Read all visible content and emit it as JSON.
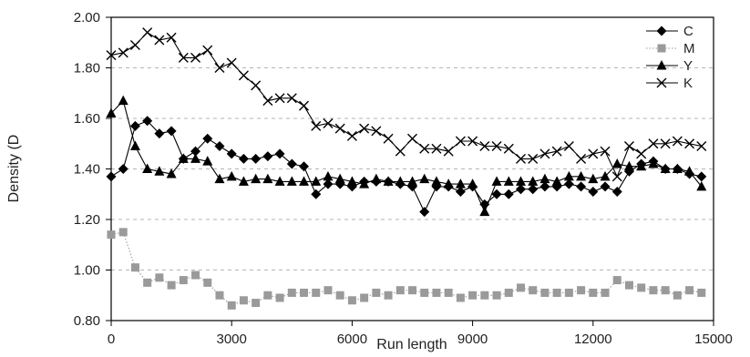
{
  "chart_data": {
    "type": "line",
    "title": "",
    "xlabel": "Run length",
    "ylabel": "Density (D",
    "xlim": [
      0,
      15000
    ],
    "ylim": [
      0.8,
      2.0
    ],
    "xticks": [
      "0",
      "3000",
      "6000",
      "9000",
      "12000",
      "15000"
    ],
    "yticks": [
      "0.80",
      "1.00",
      "1.20",
      "1.40",
      "1.60",
      "1.80",
      "2.00"
    ],
    "grid": "dashed horizontal lines at each y tick",
    "legend_position": "top-right",
    "series": [
      {
        "name": "C",
        "color": "#000000",
        "marker": "diamond",
        "line": "solid",
        "x": [
          0,
          300,
          600,
          900,
          1200,
          1500,
          1800,
          2100,
          2400,
          2700,
          3000,
          3300,
          3600,
          3900,
          4200,
          4500,
          4800,
          5100,
          5400,
          5700,
          6000,
          6300,
          6600,
          6900,
          7200,
          7500,
          7800,
          8100,
          8400,
          8700,
          9000,
          9300,
          9600,
          9900,
          10200,
          10500,
          10800,
          11100,
          11400,
          11700,
          12000,
          12300,
          12600,
          12900,
          13200,
          13500,
          13800,
          14100,
          14400,
          14700
        ],
        "y": [
          1.37,
          1.4,
          1.57,
          1.59,
          1.54,
          1.55,
          1.44,
          1.47,
          1.52,
          1.49,
          1.46,
          1.44,
          1.44,
          1.45,
          1.46,
          1.42,
          1.41,
          1.3,
          1.34,
          1.34,
          1.33,
          1.35,
          1.35,
          1.35,
          1.34,
          1.33,
          1.23,
          1.33,
          1.33,
          1.31,
          1.33,
          1.26,
          1.3,
          1.3,
          1.32,
          1.32,
          1.33,
          1.33,
          1.34,
          1.33,
          1.31,
          1.33,
          1.31,
          1.39,
          1.42,
          1.43,
          1.4,
          1.4,
          1.38,
          1.37
        ]
      },
      {
        "name": "M",
        "color": "#9a9a9a",
        "marker": "square",
        "line": "dotted",
        "x": [
          0,
          300,
          600,
          900,
          1200,
          1500,
          1800,
          2100,
          2400,
          2700,
          3000,
          3300,
          3600,
          3900,
          4200,
          4500,
          4800,
          5100,
          5400,
          5700,
          6000,
          6300,
          6600,
          6900,
          7200,
          7500,
          7800,
          8100,
          8400,
          8700,
          9000,
          9300,
          9600,
          9900,
          10200,
          10500,
          10800,
          11100,
          11400,
          11700,
          12000,
          12300,
          12600,
          12900,
          13200,
          13500,
          13800,
          14100,
          14400,
          14700
        ],
        "y": [
          1.14,
          1.15,
          1.01,
          0.95,
          0.97,
          0.94,
          0.96,
          0.98,
          0.95,
          0.9,
          0.86,
          0.88,
          0.87,
          0.9,
          0.89,
          0.91,
          0.91,
          0.91,
          0.92,
          0.9,
          0.88,
          0.89,
          0.91,
          0.9,
          0.92,
          0.92,
          0.91,
          0.91,
          0.91,
          0.89,
          0.9,
          0.9,
          0.9,
          0.91,
          0.93,
          0.92,
          0.91,
          0.91,
          0.91,
          0.92,
          0.91,
          0.91,
          0.96,
          0.94,
          0.93,
          0.92,
          0.92,
          0.9,
          0.92,
          0.91
        ]
      },
      {
        "name": "Y",
        "color": "#000000",
        "marker": "triangle",
        "line": "solid",
        "x": [
          0,
          300,
          600,
          900,
          1200,
          1500,
          1800,
          2100,
          2400,
          2700,
          3000,
          3300,
          3600,
          3900,
          4200,
          4500,
          4800,
          5100,
          5400,
          5700,
          6000,
          6300,
          6600,
          6900,
          7200,
          7500,
          7800,
          8100,
          8400,
          8700,
          9000,
          9300,
          9600,
          9900,
          10200,
          10500,
          10800,
          11100,
          11400,
          11700,
          12000,
          12300,
          12600,
          12900,
          13200,
          13500,
          13800,
          14100,
          14400,
          14700
        ],
        "y": [
          1.62,
          1.67,
          1.49,
          1.4,
          1.39,
          1.38,
          1.44,
          1.44,
          1.43,
          1.36,
          1.37,
          1.35,
          1.36,
          1.36,
          1.35,
          1.35,
          1.35,
          1.35,
          1.37,
          1.36,
          1.35,
          1.34,
          1.36,
          1.35,
          1.35,
          1.35,
          1.36,
          1.35,
          1.34,
          1.34,
          1.34,
          1.23,
          1.35,
          1.35,
          1.35,
          1.35,
          1.36,
          1.35,
          1.37,
          1.37,
          1.36,
          1.37,
          1.42,
          1.41,
          1.41,
          1.42,
          1.4,
          1.4,
          1.39,
          1.33
        ]
      },
      {
        "name": "K",
        "color": "#000000",
        "marker": "x",
        "line": "solid",
        "x": [
          0,
          300,
          600,
          900,
          1200,
          1500,
          1800,
          2100,
          2400,
          2700,
          3000,
          3300,
          3600,
          3900,
          4200,
          4500,
          4800,
          5100,
          5400,
          5700,
          6000,
          6300,
          6600,
          6900,
          7200,
          7500,
          7800,
          8100,
          8400,
          8700,
          9000,
          9300,
          9600,
          9900,
          10200,
          10500,
          10800,
          11100,
          11400,
          11700,
          12000,
          12300,
          12600,
          12900,
          13200,
          13500,
          13800,
          14100,
          14400,
          14700
        ],
        "y": [
          1.85,
          1.86,
          1.89,
          1.94,
          1.91,
          1.92,
          1.84,
          1.84,
          1.87,
          1.8,
          1.82,
          1.77,
          1.73,
          1.67,
          1.68,
          1.68,
          1.65,
          1.57,
          1.58,
          1.56,
          1.53,
          1.56,
          1.55,
          1.52,
          1.47,
          1.52,
          1.48,
          1.48,
          1.47,
          1.51,
          1.51,
          1.49,
          1.49,
          1.48,
          1.44,
          1.44,
          1.46,
          1.47,
          1.49,
          1.44,
          1.46,
          1.47,
          1.37,
          1.49,
          1.46,
          1.5,
          1.5,
          1.51,
          1.5,
          1.49
        ]
      }
    ]
  }
}
